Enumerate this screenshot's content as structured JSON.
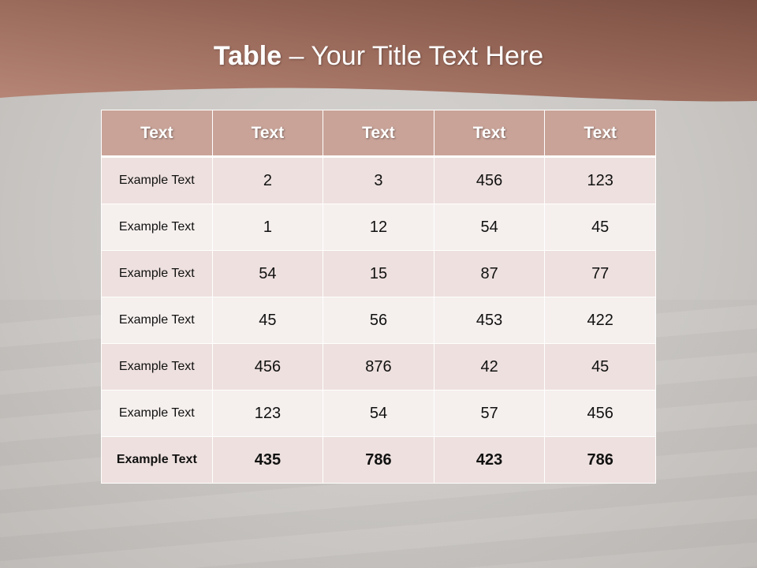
{
  "slide": {
    "title_bold": "Table",
    "title_rest": " – Your Title Text Here",
    "colors": {
      "banner": "#a06a5a",
      "header": "#c9a398",
      "row_odd": "#ede0de",
      "row_even": "#f5f0ee"
    }
  },
  "table": {
    "headers": [
      "Text",
      "Text",
      "Text",
      "Text",
      "Text"
    ],
    "rows": [
      [
        "Example Text",
        "2",
        "3",
        "456",
        "123"
      ],
      [
        "Example Text",
        "1",
        "12",
        "54",
        "45"
      ],
      [
        "Example Text",
        "54",
        "15",
        "87",
        "77"
      ],
      [
        "Example Text",
        "45",
        "56",
        "453",
        "422"
      ],
      [
        "Example Text",
        "456",
        "876",
        "42",
        "45"
      ],
      [
        "Example Text",
        "123",
        "54",
        "57",
        "456"
      ],
      [
        "Example Text",
        "435",
        "786",
        "423",
        "786"
      ]
    ]
  }
}
